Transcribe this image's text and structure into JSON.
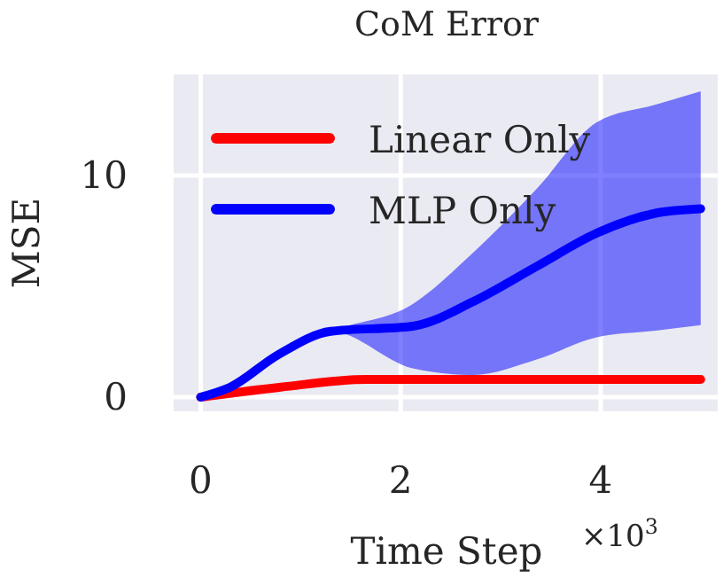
{
  "chart_data": {
    "type": "line",
    "title": "CoM Error",
    "xlabel": "Time Step",
    "ylabel": "MSE",
    "annotations": [
      "×10$^{3}$"
    ],
    "xlim": [
      -0.27,
      5.17
    ],
    "ylim": [
      -0.64,
      14.56
    ],
    "xticks": [
      0,
      2,
      4
    ],
    "yticks": [
      0,
      10
    ],
    "grid": true,
    "legend": "top left",
    "line_style": "solid",
    "marker": "none",
    "series": [
      {
        "name": "Linear Only",
        "color": "#ff0000",
        "x": [
          0,
          0.8,
          1.66,
          5
        ],
        "values": [
          0,
          0.45,
          0.8,
          0.8
        ]
      },
      {
        "name": "MLP Only",
        "color": "#0000ff",
        "x": [
          0,
          0.3,
          0.77,
          1.3,
          2.12,
          2.72,
          3.36,
          3.96,
          4.55,
          5
        ],
        "values": [
          0,
          0.46,
          1.9,
          2.97,
          3.2,
          4.3,
          5.9,
          7.4,
          8.3,
          8.5
        ],
        "lower": [
          0,
          0.46,
          1.9,
          2.97,
          1.3,
          1.0,
          1.7,
          2.7,
          3.0,
          3.25
        ],
        "upper": [
          0,
          0.46,
          1.9,
          2.97,
          4.2,
          6.5,
          9.4,
          12.4,
          13.2,
          13.8
        ]
      }
    ]
  }
}
